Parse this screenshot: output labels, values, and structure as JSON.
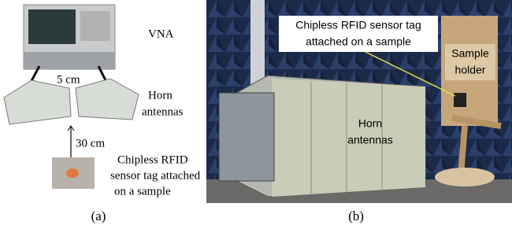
{
  "panels": [
    {
      "label": "(a)",
      "vna": "VNA",
      "spacing": "5 cm",
      "antennas": [
        "Horn",
        "antennas"
      ],
      "distance": "30 cm",
      "tag": [
        "Chipless RFID",
        "sensor tag attached",
        "on a sample"
      ]
    },
    {
      "label": "(b)",
      "tag": [
        "Chipless RFID sensor tag",
        "attached on a sample"
      ],
      "holder": [
        "Sample",
        "holder"
      ],
      "antennas": [
        "Horn",
        "antennas"
      ]
    }
  ]
}
